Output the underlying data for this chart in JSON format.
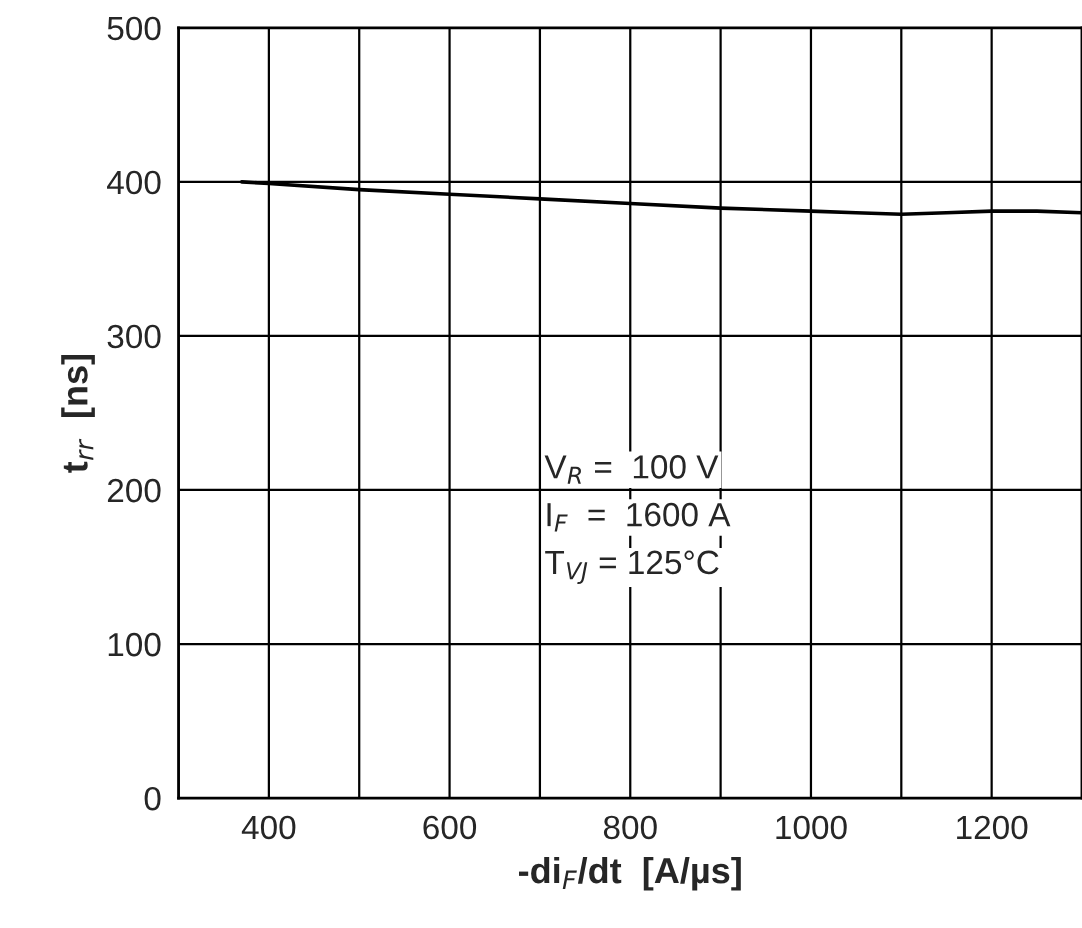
{
  "chart_data": {
    "type": "line",
    "xlabel": "-di$_{F}$/dt  [A/µs]",
    "ylabel": "t$_{rr}$  [ns]",
    "x": [
      370,
      400,
      500,
      600,
      700,
      800,
      900,
      1000,
      1050,
      1100,
      1150,
      1200,
      1250,
      1300
    ],
    "series": [
      {
        "color": "#000000",
        "values": [
          400,
          399,
          395,
          392,
          389,
          386,
          383,
          381,
          380,
          379,
          380,
          381,
          381,
          380
        ]
      }
    ],
    "xlim": [
      300,
      1300
    ],
    "xticks": [
      {
        "value": 300,
        "label": null
      },
      400,
      {
        "value": 500,
        "label": null
      },
      600,
      {
        "value": 700,
        "label": null
      },
      800,
      {
        "value": 900,
        "label": null
      },
      1000,
      {
        "value": 1100,
        "label": null
      },
      1200,
      {
        "value": 1300,
        "label": null
      }
    ],
    "ylim": [
      0,
      500
    ],
    "yticks": [
      0,
      100,
      200,
      300,
      400,
      500
    ],
    "grid": true,
    "legend": false,
    "marker": "none",
    "line_style": "solid",
    "annotations": [
      "V$_{R}$ =  100 V",
      "I$_{F}$  =  1600 A",
      "T$_{VJ}$ = 125°C"
    ]
  }
}
